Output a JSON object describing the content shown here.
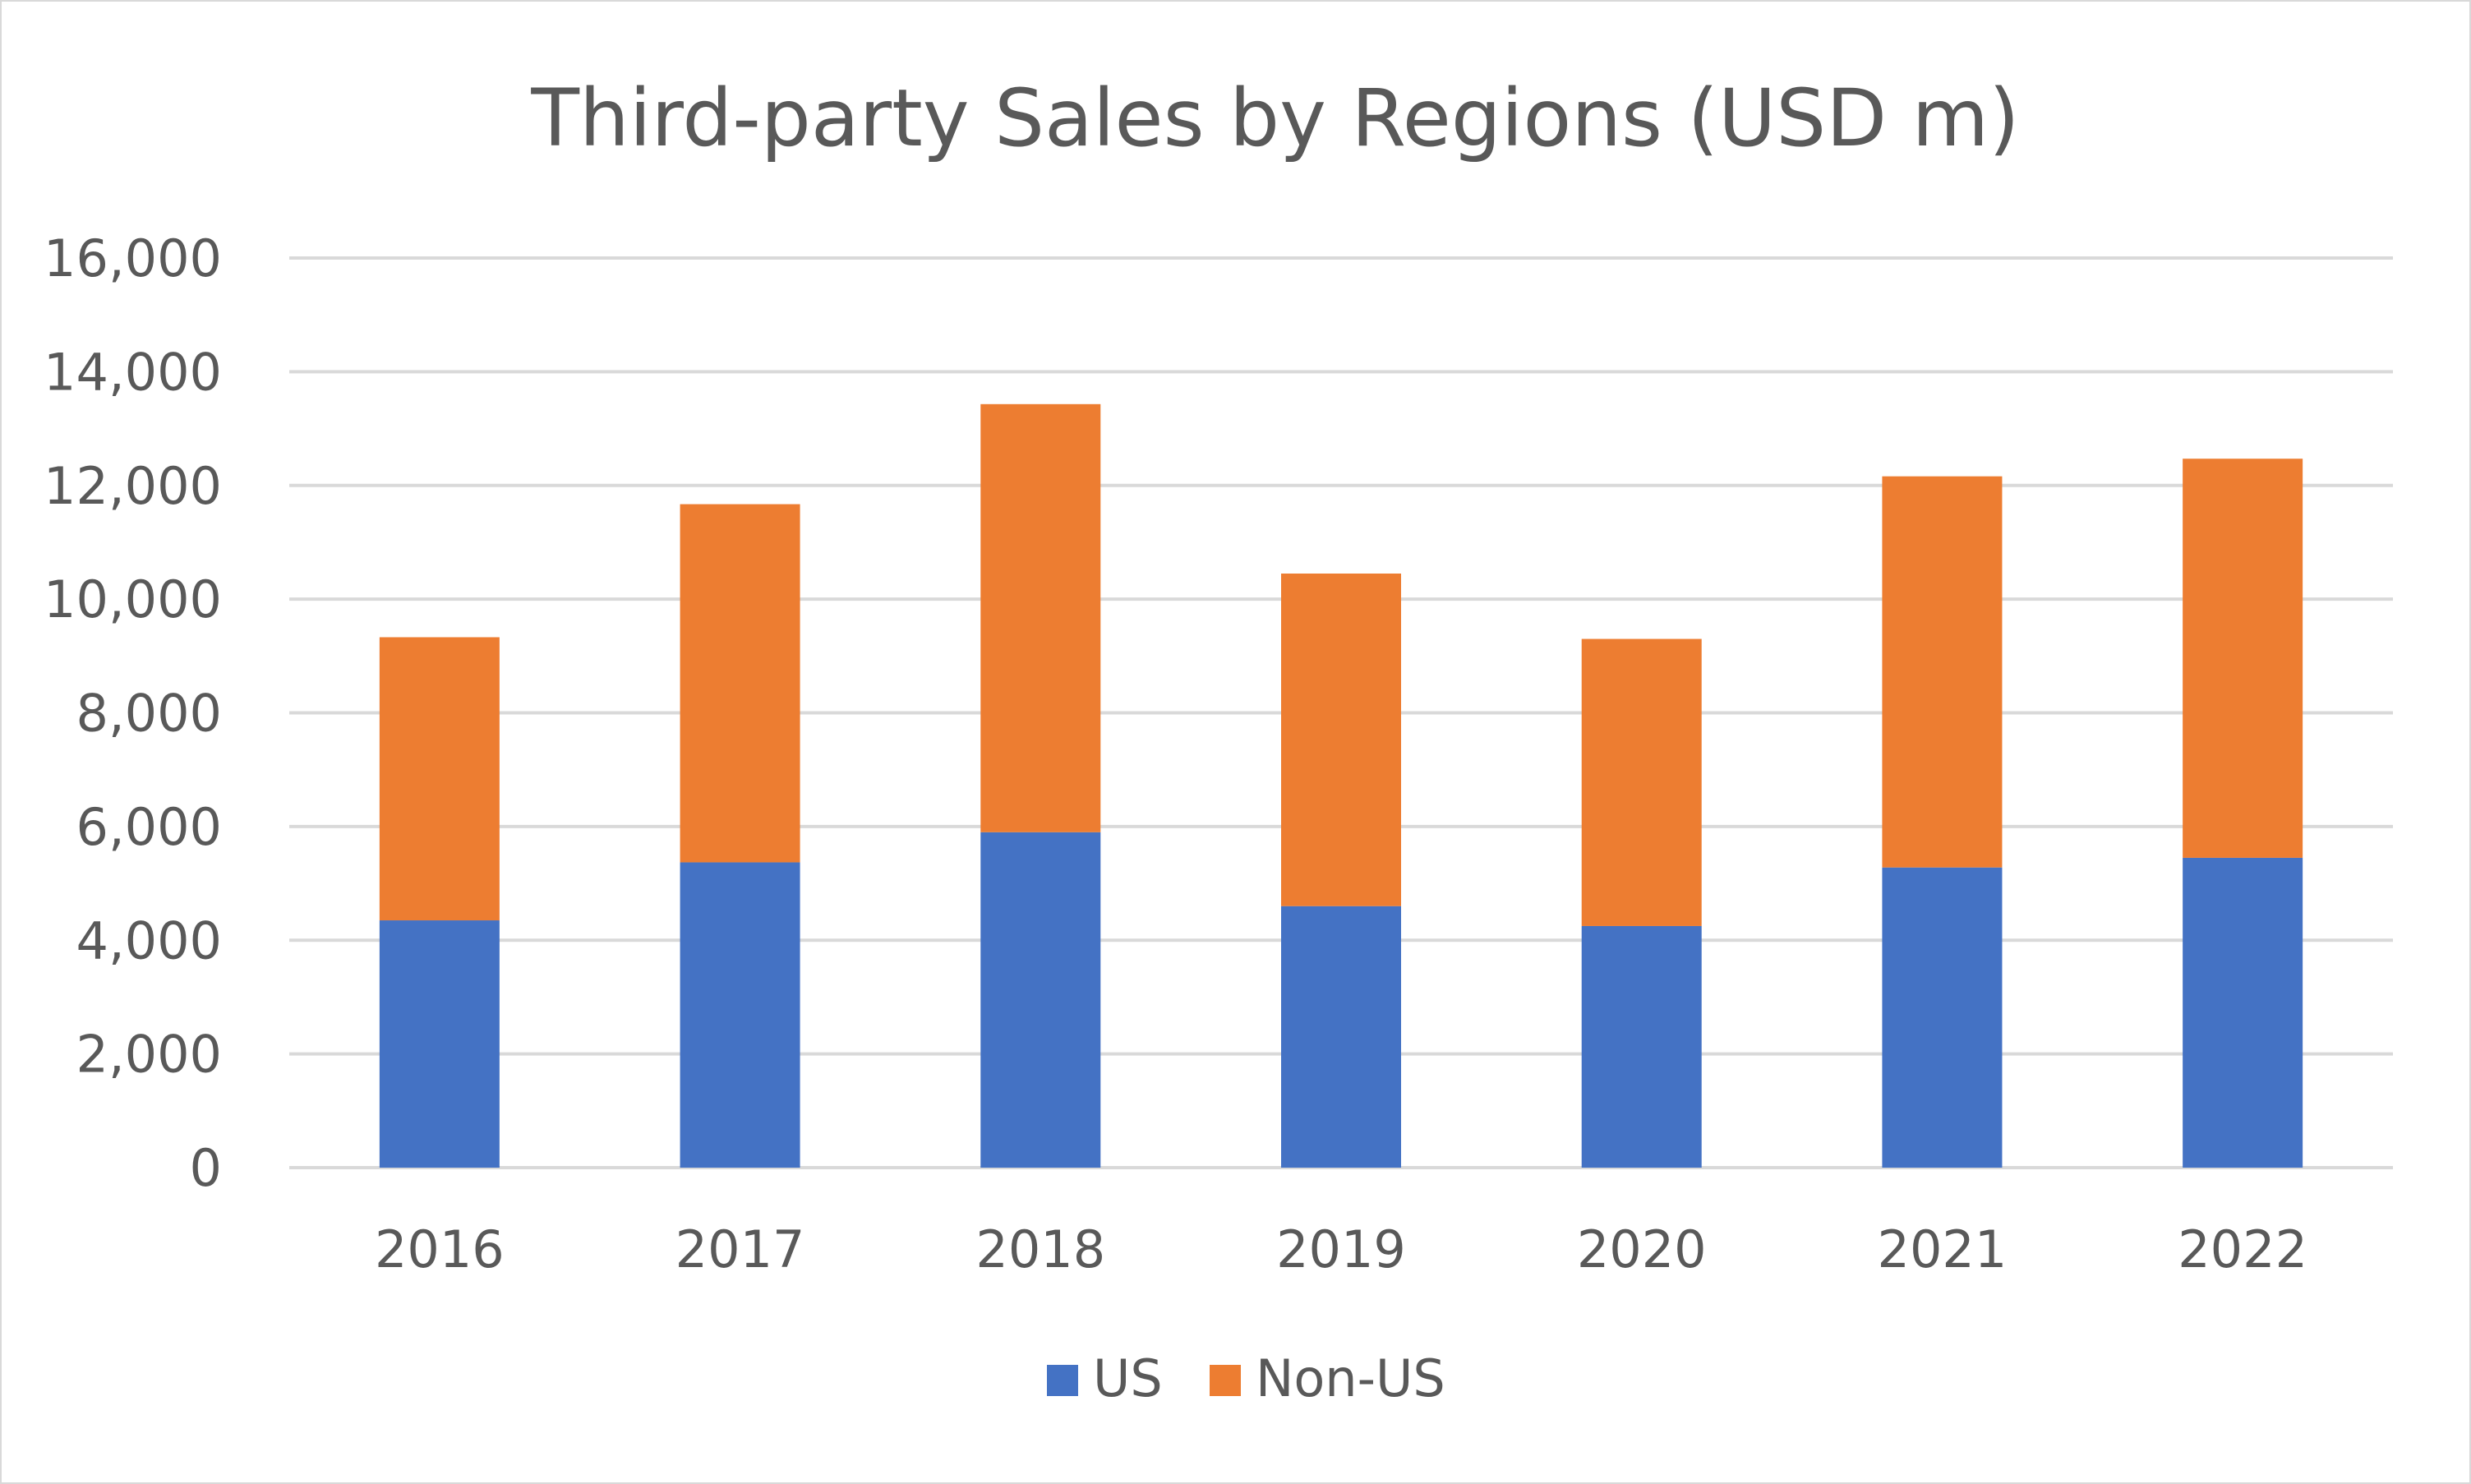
{
  "chart_data": {
    "type": "bar",
    "stacked": true,
    "title": "Third-party Sales by Regions (USD m)",
    "xlabel": "",
    "ylabel": "",
    "categories": [
      "2016",
      "2017",
      "2018",
      "2019",
      "2020",
      "2021",
      "2022"
    ],
    "series": [
      {
        "name": "US",
        "color": "#4472C4",
        "values": [
          4350,
          5370,
          5900,
          4600,
          4250,
          5280,
          5450
        ]
      },
      {
        "name": "Non-US",
        "color": "#ED7D31",
        "values": [
          4980,
          6300,
          7530,
          5850,
          5050,
          6880,
          7020
        ]
      }
    ],
    "ylim": [
      0,
      16000
    ],
    "yticks": [
      0,
      2000,
      4000,
      6000,
      8000,
      10000,
      12000,
      14000,
      16000
    ],
    "ytick_labels": [
      "0",
      "2,000",
      "4,000",
      "6,000",
      "8,000",
      "10,000",
      "12,000",
      "14,000",
      "16,000"
    ],
    "grid": true,
    "gridline_color": "#d9d9d9",
    "legend_position": "bottom"
  }
}
